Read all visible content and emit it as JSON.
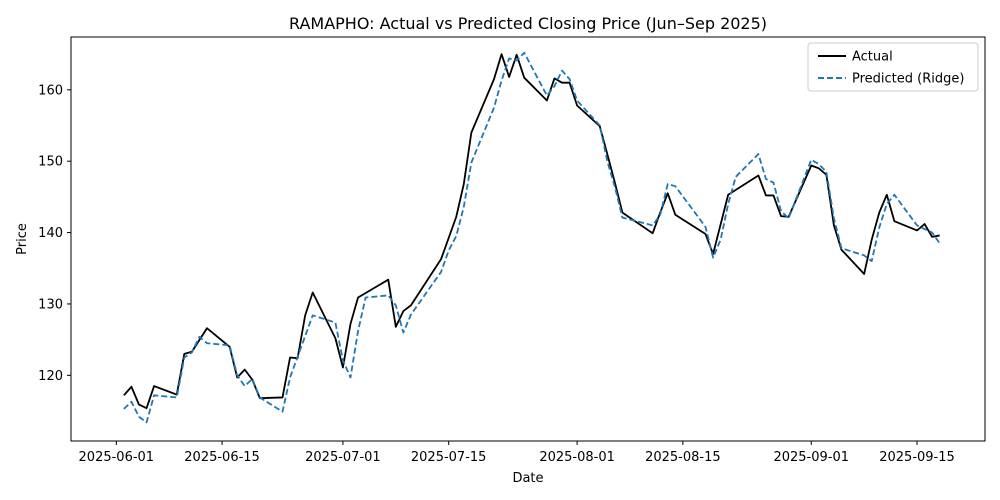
{
  "chart_data": {
    "type": "line",
    "title": "RAMAPHO: Actual vs Predicted Closing Price (Jun–Sep 2025)",
    "xlabel": "Date",
    "ylabel": "Price",
    "x_ticks": [
      "2025-06-01",
      "2025-06-15",
      "2025-07-01",
      "2025-07-15",
      "2025-08-01",
      "2025-08-15",
      "2025-09-01",
      "2025-09-15"
    ],
    "y_ticks": [
      120,
      130,
      140,
      150,
      160
    ],
    "xlim": [
      "2025-05-26",
      "2025-09-24"
    ],
    "ylim": [
      110.8,
      167.4
    ],
    "grid": false,
    "legend": {
      "position": "top-right"
    },
    "series": [
      {
        "name": "Actual",
        "color": "#000000",
        "style": "solid",
        "points": [
          [
            "2025-06-02",
            117.2
          ],
          [
            "2025-06-03",
            118.4
          ],
          [
            "2025-06-04",
            115.9
          ],
          [
            "2025-06-05",
            115.4
          ],
          [
            "2025-06-06",
            118.5
          ],
          [
            "2025-06-09",
            117.3
          ],
          [
            "2025-06-10",
            123.0
          ],
          [
            "2025-06-11",
            123.3
          ],
          [
            "2025-06-13",
            126.6
          ],
          [
            "2025-06-16",
            124.0
          ],
          [
            "2025-06-17",
            119.7
          ],
          [
            "2025-06-18",
            120.8
          ],
          [
            "2025-06-19",
            119.4
          ],
          [
            "2025-06-20",
            116.8
          ],
          [
            "2025-06-23",
            116.9
          ],
          [
            "2025-06-24",
            122.5
          ],
          [
            "2025-06-25",
            122.4
          ],
          [
            "2025-06-26",
            128.4
          ],
          [
            "2025-06-27",
            131.6
          ],
          [
            "2025-06-30",
            125.2
          ],
          [
            "2025-07-01",
            121.1
          ],
          [
            "2025-07-02",
            127.2
          ],
          [
            "2025-07-03",
            130.9
          ],
          [
            "2025-07-07",
            133.4
          ],
          [
            "2025-07-08",
            126.8
          ],
          [
            "2025-07-09",
            129.0
          ],
          [
            "2025-07-10",
            129.8
          ],
          [
            "2025-07-14",
            136.3
          ],
          [
            "2025-07-16",
            142.2
          ],
          [
            "2025-07-17",
            146.8
          ],
          [
            "2025-07-18",
            154.0
          ],
          [
            "2025-07-21",
            161.5
          ],
          [
            "2025-07-22",
            165.0
          ],
          [
            "2025-07-23",
            161.8
          ],
          [
            "2025-07-24",
            164.9
          ],
          [
            "2025-07-25",
            161.7
          ],
          [
            "2025-07-28",
            158.5
          ],
          [
            "2025-07-29",
            161.6
          ],
          [
            "2025-07-30",
            161.0
          ],
          [
            "2025-07-31",
            161.0
          ],
          [
            "2025-08-01",
            157.8
          ],
          [
            "2025-08-04",
            154.9
          ],
          [
            "2025-08-05",
            151.0
          ],
          [
            "2025-08-06",
            147.0
          ],
          [
            "2025-08-07",
            142.8
          ],
          [
            "2025-08-11",
            139.9
          ],
          [
            "2025-08-12",
            142.8
          ],
          [
            "2025-08-13",
            145.5
          ],
          [
            "2025-08-14",
            142.5
          ],
          [
            "2025-08-18",
            139.8
          ],
          [
            "2025-08-19",
            137.0
          ],
          [
            "2025-08-21",
            145.3
          ],
          [
            "2025-08-25",
            148.0
          ],
          [
            "2025-08-26",
            145.2
          ],
          [
            "2025-08-27",
            145.2
          ],
          [
            "2025-08-28",
            142.3
          ],
          [
            "2025-08-29",
            142.2
          ],
          [
            "2025-09-01",
            149.4
          ],
          [
            "2025-09-02",
            149.0
          ],
          [
            "2025-09-03",
            148.1
          ],
          [
            "2025-09-04",
            141.0
          ],
          [
            "2025-09-05",
            137.6
          ],
          [
            "2025-09-08",
            134.2
          ],
          [
            "2025-09-09",
            139.0
          ],
          [
            "2025-09-10",
            142.8
          ],
          [
            "2025-09-11",
            145.3
          ],
          [
            "2025-09-12",
            141.6
          ],
          [
            "2025-09-15",
            140.3
          ],
          [
            "2025-09-16",
            141.2
          ],
          [
            "2025-09-17",
            139.4
          ],
          [
            "2025-09-18",
            139.6
          ]
        ]
      },
      {
        "name": "Predicted (Ridge)",
        "color": "#1f77b4",
        "style": "dashed",
        "points": [
          [
            "2025-06-02",
            115.3
          ],
          [
            "2025-06-03",
            116.3
          ],
          [
            "2025-06-04",
            114.2
          ],
          [
            "2025-06-05",
            113.4
          ],
          [
            "2025-06-06",
            117.2
          ],
          [
            "2025-06-09",
            116.9
          ],
          [
            "2025-06-10",
            122.5
          ],
          [
            "2025-06-11",
            123.2
          ],
          [
            "2025-06-12",
            125.4
          ],
          [
            "2025-06-13",
            124.5
          ],
          [
            "2025-06-16",
            124.2
          ],
          [
            "2025-06-17",
            120.0
          ],
          [
            "2025-06-18",
            118.5
          ],
          [
            "2025-06-19",
            119.5
          ],
          [
            "2025-06-20",
            116.9
          ],
          [
            "2025-06-23",
            114.9
          ],
          [
            "2025-06-24",
            119.7
          ],
          [
            "2025-06-25",
            122.6
          ],
          [
            "2025-06-27",
            128.4
          ],
          [
            "2025-06-30",
            127.4
          ],
          [
            "2025-07-01",
            122.1
          ],
          [
            "2025-07-02",
            119.7
          ],
          [
            "2025-07-03",
            126.2
          ],
          [
            "2025-07-04",
            130.9
          ],
          [
            "2025-07-07",
            131.2
          ],
          [
            "2025-07-08",
            129.8
          ],
          [
            "2025-07-09",
            126.0
          ],
          [
            "2025-07-10",
            128.5
          ],
          [
            "2025-07-14",
            134.5
          ],
          [
            "2025-07-15",
            137.5
          ],
          [
            "2025-07-16",
            139.5
          ],
          [
            "2025-07-17",
            143.6
          ],
          [
            "2025-07-18",
            149.8
          ],
          [
            "2025-07-21",
            157.5
          ],
          [
            "2025-07-22",
            161.3
          ],
          [
            "2025-07-23",
            164.4
          ],
          [
            "2025-07-24",
            164.1
          ],
          [
            "2025-07-25",
            165.2
          ],
          [
            "2025-07-28",
            159.2
          ],
          [
            "2025-07-29",
            160.5
          ],
          [
            "2025-07-30",
            162.7
          ],
          [
            "2025-07-31",
            161.5
          ],
          [
            "2025-08-01",
            158.5
          ],
          [
            "2025-08-04",
            155.0
          ],
          [
            "2025-08-05",
            150.0
          ],
          [
            "2025-08-06",
            146.4
          ],
          [
            "2025-08-07",
            142.1
          ],
          [
            "2025-08-11",
            141.0
          ],
          [
            "2025-08-12",
            142.5
          ],
          [
            "2025-08-13",
            146.8
          ],
          [
            "2025-08-14",
            146.5
          ],
          [
            "2025-08-18",
            140.8
          ],
          [
            "2025-08-19",
            136.5
          ],
          [
            "2025-08-20",
            139.0
          ],
          [
            "2025-08-21",
            144.0
          ],
          [
            "2025-08-22",
            147.8
          ],
          [
            "2025-08-25",
            151.0
          ],
          [
            "2025-08-26",
            147.5
          ],
          [
            "2025-08-27",
            147.0
          ],
          [
            "2025-08-28",
            143.0
          ],
          [
            "2025-08-29",
            142.0
          ],
          [
            "2025-09-01",
            150.2
          ],
          [
            "2025-09-02",
            149.6
          ],
          [
            "2025-09-03",
            148.5
          ],
          [
            "2025-09-04",
            142.0
          ],
          [
            "2025-09-05",
            137.8
          ],
          [
            "2025-09-08",
            136.8
          ],
          [
            "2025-09-09",
            136.0
          ],
          [
            "2025-09-10",
            140.7
          ],
          [
            "2025-09-11",
            144.0
          ],
          [
            "2025-09-12",
            145.3
          ],
          [
            "2025-09-15",
            141.0
          ],
          [
            "2025-09-16",
            140.5
          ],
          [
            "2025-09-17",
            140.0
          ],
          [
            "2025-09-18",
            138.5
          ]
        ]
      }
    ]
  }
}
